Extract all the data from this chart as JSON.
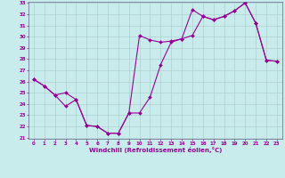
{
  "xlabel": "Windchill (Refroidissement éolien,°C)",
  "line1_x": [
    0,
    1,
    2,
    3,
    4,
    5,
    6,
    7,
    8,
    9,
    10,
    11,
    12,
    13,
    14,
    15,
    16,
    17,
    18,
    19,
    20,
    21,
    22,
    23
  ],
  "line1_y": [
    26.2,
    25.6,
    24.8,
    25.0,
    24.4,
    22.1,
    22.0,
    21.4,
    21.4,
    23.2,
    23.2,
    24.6,
    27.5,
    29.5,
    29.8,
    30.1,
    31.8,
    31.5,
    31.8,
    32.3,
    33.0,
    31.2,
    27.9,
    27.8
  ],
  "line2_x": [
    0,
    1,
    2,
    3,
    4,
    5,
    6,
    7,
    8,
    9,
    10,
    11,
    12,
    13,
    14,
    15,
    16,
    17,
    18,
    19,
    20,
    21,
    22,
    23
  ],
  "line2_y": [
    26.2,
    25.6,
    24.8,
    23.8,
    24.4,
    22.1,
    22.0,
    21.4,
    21.4,
    23.2,
    30.1,
    29.7,
    29.5,
    29.6,
    29.8,
    32.4,
    31.8,
    31.5,
    31.8,
    32.3,
    33.0,
    31.2,
    27.9,
    27.8
  ],
  "line_color": "#990099",
  "bg_color": "#c8ecec",
  "grid_color": "#b0d0d0",
  "ylim": [
    21,
    33
  ],
  "xlim": [
    -0.5,
    23.5
  ],
  "yticks": [
    21,
    22,
    23,
    24,
    25,
    26,
    27,
    28,
    29,
    30,
    31,
    32,
    33
  ],
  "xticks": [
    0,
    1,
    2,
    3,
    4,
    5,
    6,
    7,
    8,
    9,
    10,
    11,
    12,
    13,
    14,
    15,
    16,
    17,
    18,
    19,
    20,
    21,
    22,
    23
  ],
  "tick_fontsize": 4.0,
  "xlabel_fontsize": 5.0
}
